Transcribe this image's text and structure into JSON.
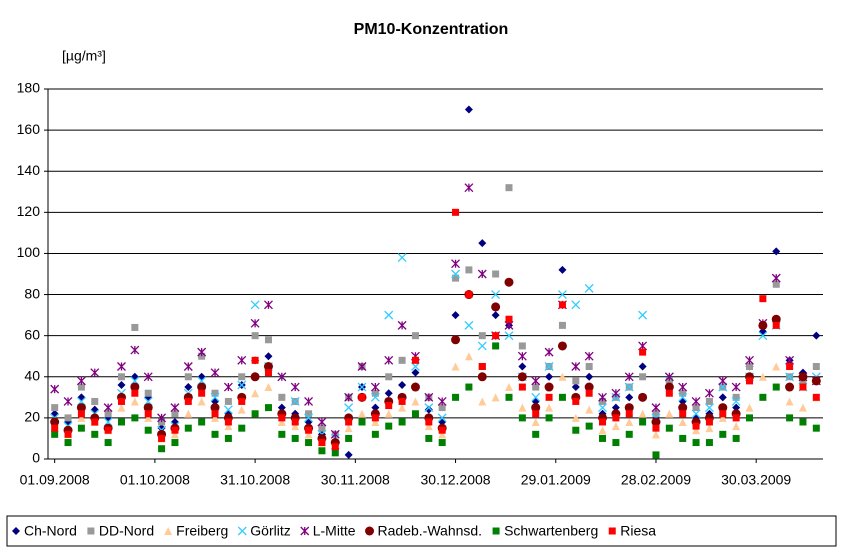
{
  "chart_data": {
    "type": "scatter",
    "title": "PM10-Konzentration",
    "y_label": "[µg/m³]",
    "grid": true,
    "legend": "bottom",
    "ylim": [
      0,
      180
    ],
    "yticks": [
      0,
      20,
      40,
      60,
      80,
      100,
      120,
      140,
      160,
      180
    ],
    "xlim": [
      "2008-08-30",
      "2009-04-19"
    ],
    "xticks": [
      {
        "value": "2008-09-01",
        "label": "01.09.2008"
      },
      {
        "value": "2008-10-01",
        "label": "01.10.2008"
      },
      {
        "value": "2008-10-31",
        "label": "31.10.2008"
      },
      {
        "value": "2008-11-30",
        "label": "30.11.2008"
      },
      {
        "value": "2008-12-30",
        "label": "30.12.2008"
      },
      {
        "value": "2009-01-29",
        "label": "29.01.2009"
      },
      {
        "value": "2009-02-28",
        "label": "28.02.2009"
      },
      {
        "value": "2009-03-30",
        "label": "30.03.2009"
      }
    ],
    "x": [
      "2008-09-01",
      "2008-09-05",
      "2008-09-09",
      "2008-09-13",
      "2008-09-17",
      "2008-09-21",
      "2008-09-25",
      "2008-09-29",
      "2008-10-03",
      "2008-10-07",
      "2008-10-11",
      "2008-10-15",
      "2008-10-19",
      "2008-10-23",
      "2008-10-27",
      "2008-10-31",
      "2008-11-04",
      "2008-11-08",
      "2008-11-12",
      "2008-11-16",
      "2008-11-20",
      "2008-11-24",
      "2008-11-28",
      "2008-12-02",
      "2008-12-06",
      "2008-12-10",
      "2008-12-14",
      "2008-12-18",
      "2008-12-22",
      "2008-12-26",
      "2008-12-30",
      "2009-01-03",
      "2009-01-07",
      "2009-01-11",
      "2009-01-15",
      "2009-01-19",
      "2009-01-23",
      "2009-01-27",
      "2009-01-31",
      "2009-02-04",
      "2009-02-08",
      "2009-02-12",
      "2009-02-16",
      "2009-02-20",
      "2009-02-24",
      "2009-02-28",
      "2009-03-04",
      "2009-03-08",
      "2009-03-12",
      "2009-03-16",
      "2009-03-20",
      "2009-03-24",
      "2009-03-28",
      "2009-04-01",
      "2009-04-05",
      "2009-04-09",
      "2009-04-13",
      "2009-04-17"
    ],
    "series": [
      {
        "name": "Ch-Nord",
        "color": "#000080",
        "marker": "diamond",
        "values": [
          22,
          18,
          30,
          24,
          20,
          36,
          40,
          30,
          15,
          18,
          35,
          40,
          28,
          22,
          36,
          48,
          50,
          25,
          22,
          18,
          12,
          5,
          2,
          35,
          25,
          32,
          36,
          42,
          24,
          18,
          70,
          170,
          105,
          70,
          65,
          45,
          28,
          40,
          92,
          35,
          40,
          22,
          25,
          30,
          45,
          20,
          38,
          28,
          20,
          22,
          30,
          25,
          45,
          62,
          101,
          48,
          42,
          60
        ]
      },
      {
        "name": "DD-Nord",
        "color": "#999999",
        "marker": "square",
        "values": [
          25,
          20,
          35,
          28,
          22,
          40,
          64,
          32,
          18,
          22,
          40,
          50,
          32,
          28,
          40,
          60,
          58,
          30,
          28,
          22,
          15,
          12,
          30,
          45,
          32,
          40,
          48,
          60,
          30,
          25,
          88,
          92,
          60,
          90,
          132,
          55,
          35,
          45,
          65,
          38,
          45,
          28,
          30,
          35,
          40,
          22,
          38,
          32,
          25,
          28,
          35,
          30,
          45,
          65,
          85,
          40,
          38,
          45
        ]
      },
      {
        "name": "Freiberg",
        "color": "#ffcc99",
        "marker": "triangle",
        "values": [
          15,
          12,
          20,
          18,
          14,
          25,
          28,
          20,
          10,
          12,
          22,
          28,
          20,
          16,
          24,
          32,
          35,
          18,
          16,
          12,
          8,
          6,
          15,
          22,
          18,
          22,
          25,
          28,
          16,
          12,
          45,
          50,
          28,
          30,
          35,
          25,
          18,
          25,
          40,
          20,
          24,
          14,
          16,
          18,
          22,
          12,
          22,
          18,
          14,
          15,
          20,
          16,
          25,
          40,
          45,
          28,
          25,
          30
        ]
      },
      {
        "name": "Görlitz",
        "color": "#33ccff",
        "marker": "x",
        "values": [
          20,
          16,
          28,
          22,
          18,
          32,
          38,
          28,
          14,
          16,
          32,
          38,
          30,
          24,
          36,
          75,
          45,
          40,
          28,
          20,
          12,
          10,
          25,
          35,
          30,
          70,
          98,
          45,
          25,
          20,
          90,
          65,
          55,
          80,
          60,
          40,
          30,
          45,
          80,
          75,
          83,
          25,
          30,
          35,
          70,
          20,
          40,
          30,
          22,
          25,
          35,
          28,
          40,
          60,
          65,
          40,
          35,
          40
        ]
      },
      {
        "name": "L-Mitte",
        "color": "#800080",
        "marker": "star",
        "values": [
          34,
          28,
          38,
          42,
          25,
          45,
          53,
          40,
          20,
          25,
          45,
          52,
          42,
          35,
          48,
          66,
          75,
          40,
          35,
          28,
          18,
          12,
          30,
          45,
          35,
          48,
          65,
          50,
          30,
          28,
          95,
          132,
          90,
          60,
          65,
          50,
          38,
          52,
          75,
          45,
          50,
          30,
          32,
          40,
          55,
          25,
          40,
          35,
          28,
          32,
          38,
          35,
          48,
          66,
          88,
          48,
          40,
          38
        ]
      },
      {
        "name": "Radeb.-Wahnsd.",
        "color": "#800000",
        "marker": "circle",
        "values": [
          18,
          14,
          25,
          20,
          15,
          30,
          35,
          25,
          12,
          15,
          30,
          35,
          25,
          20,
          30,
          40,
          45,
          22,
          20,
          15,
          10,
          8,
          20,
          30,
          22,
          28,
          30,
          35,
          20,
          15,
          58,
          80,
          40,
          74,
          86,
          40,
          25,
          35,
          55,
          30,
          35,
          20,
          22,
          25,
          30,
          18,
          35,
          25,
          18,
          20,
          25,
          22,
          40,
          65,
          68,
          35,
          40,
          38
        ]
      },
      {
        "name": "Schwartenberg",
        "color": "#008000",
        "marker": "square",
        "values": [
          12,
          8,
          15,
          12,
          8,
          18,
          20,
          14,
          5,
          8,
          15,
          18,
          12,
          10,
          15,
          22,
          25,
          12,
          10,
          8,
          4,
          3,
          10,
          18,
          12,
          16,
          18,
          22,
          10,
          8,
          30,
          35,
          45,
          55,
          30,
          20,
          12,
          20,
          30,
          14,
          16,
          10,
          8,
          12,
          18,
          2,
          15,
          10,
          8,
          8,
          12,
          10,
          20,
          30,
          35,
          20,
          18,
          15
        ]
      },
      {
        "name": "Riesa",
        "color": "#ff0000",
        "marker": "square",
        "values": [
          15,
          12,
          22,
          18,
          14,
          28,
          32,
          22,
          10,
          14,
          28,
          32,
          22,
          18,
          28,
          48,
          42,
          20,
          18,
          14,
          8,
          6,
          18,
          30,
          20,
          26,
          28,
          48,
          18,
          14,
          120,
          80,
          45,
          60,
          68,
          35,
          22,
          30,
          75,
          28,
          32,
          18,
          20,
          22,
          52,
          15,
          32,
          22,
          16,
          18,
          22,
          20,
          38,
          78,
          65,
          45,
          35,
          30
        ]
      }
    ]
  }
}
